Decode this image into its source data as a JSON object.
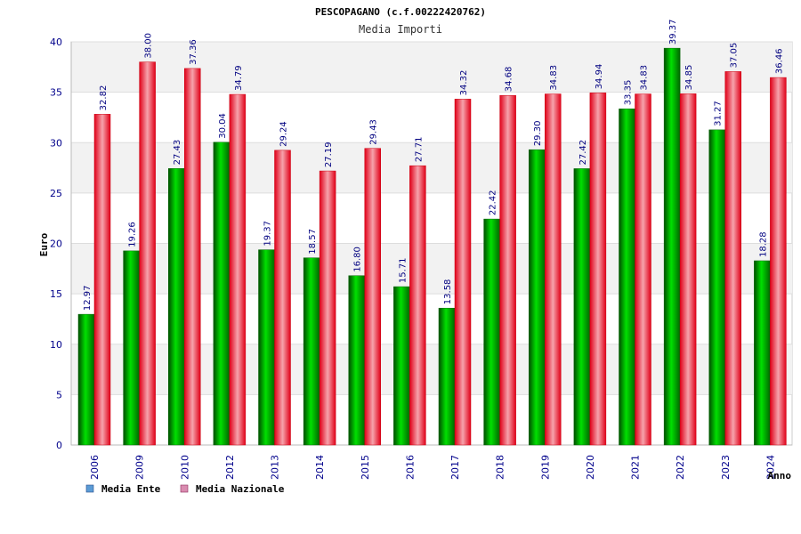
{
  "chart_data": {
    "type": "bar",
    "title": "PESCOPAGANO (c.f.00222420762)",
    "subtitle": "Media Importi",
    "xlabel": "Anno",
    "ylabel": "Euro",
    "ylim": [
      0,
      40
    ],
    "yticks": [
      0,
      5,
      10,
      15,
      20,
      25,
      30,
      35,
      40
    ],
    "categories": [
      "2006",
      "2009",
      "2010",
      "2012",
      "2013",
      "2014",
      "2015",
      "2016",
      "2017",
      "2018",
      "2019",
      "2020",
      "2021",
      "2022",
      "2023",
      "2024"
    ],
    "series": [
      {
        "name": "Media Ente",
        "values": [
          12.97,
          19.26,
          27.43,
          30.04,
          19.37,
          18.57,
          16.8,
          15.71,
          13.58,
          22.42,
          29.3,
          27.42,
          33.35,
          39.37,
          31.27,
          18.28
        ],
        "labels": [
          "12.97",
          "19.26",
          "27.43",
          "30.04",
          "19.37",
          "18.57",
          "16.80",
          "15.71",
          "13.58",
          "22.42",
          "29.30",
          "27.42",
          "33.35",
          "39.37",
          "31.27",
          "18.28"
        ]
      },
      {
        "name": "Media Nazionale",
        "values": [
          32.82,
          38.0,
          37.36,
          34.79,
          29.24,
          27.19,
          29.43,
          27.71,
          34.32,
          34.68,
          34.83,
          34.94,
          34.83,
          34.85,
          37.05,
          36.46
        ],
        "labels": [
          "32.82",
          "38.00",
          "37.36",
          "34.79",
          "29.24",
          "27.19",
          "29.43",
          "27.71",
          "34.32",
          "34.68",
          "34.83",
          "34.94",
          "34.83",
          "34.85",
          "37.05",
          "36.46"
        ]
      }
    ],
    "legend": [
      {
        "label": "Media Ente",
        "color": "#5b9bd5"
      },
      {
        "label": "Media Nazionale",
        "color": "#d98cb0"
      }
    ],
    "colors": {
      "ente": "#00aa00",
      "nazionale": "#e8112d"
    },
    "legend_position": "bottom-left",
    "grid": true
  }
}
